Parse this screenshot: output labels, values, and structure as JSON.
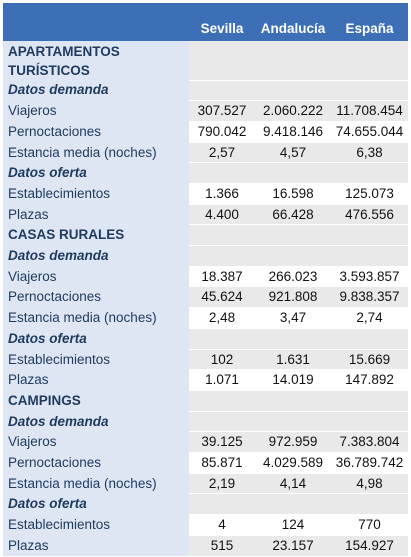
{
  "header": {
    "columns": [
      "",
      "Sevilla",
      "Andalucía",
      "España"
    ]
  },
  "rows": [
    {
      "type": "section",
      "label": "APARTAMENTOS TURÍSTICOS",
      "values": [
        "",
        "",
        ""
      ]
    },
    {
      "type": "sub",
      "label": "Datos demanda",
      "values": [
        "",
        "",
        ""
      ]
    },
    {
      "type": "data",
      "label": "Viajeros",
      "values": [
        "307.527",
        "2.060.222",
        "11.708.454"
      ]
    },
    {
      "type": "data",
      "label": "Pernoctaciones",
      "values": [
        "790.042",
        "9.418.146",
        "74.655.044"
      ]
    },
    {
      "type": "data",
      "label": "Estancia media (noches)",
      "values": [
        "2,57",
        "4,57",
        "6,38"
      ]
    },
    {
      "type": "sub",
      "label": "Datos oferta",
      "values": [
        "",
        "",
        ""
      ]
    },
    {
      "type": "data",
      "label": "Establecimientos",
      "values": [
        "1.366",
        "16.598",
        "125.073"
      ]
    },
    {
      "type": "data",
      "label": "Plazas",
      "values": [
        "4.400",
        "66.428",
        "476.556"
      ]
    },
    {
      "type": "section",
      "label": "CASAS RURALES",
      "values": [
        "",
        "",
        ""
      ]
    },
    {
      "type": "sub",
      "label": "Datos demanda",
      "values": [
        "",
        "",
        ""
      ]
    },
    {
      "type": "data",
      "label": "Viajeros",
      "values": [
        "18.387",
        "266.023",
        "3.593.857"
      ]
    },
    {
      "type": "data",
      "label": "Pernoctaciones",
      "values": [
        "45.624",
        "921.808",
        "9.838.357"
      ]
    },
    {
      "type": "data",
      "label": "Estancia media (noches)",
      "values": [
        "2,48",
        "3,47",
        "2,74"
      ]
    },
    {
      "type": "sub",
      "label": "Datos oferta",
      "values": [
        "",
        "",
        ""
      ]
    },
    {
      "type": "data",
      "label": "Establecimientos",
      "values": [
        "102",
        "1.631",
        "15.669"
      ]
    },
    {
      "type": "data",
      "label": "Plazas",
      "values": [
        "1.071",
        "14.019",
        "147.892"
      ]
    },
    {
      "type": "section",
      "label": "CAMPINGS",
      "values": [
        "",
        "",
        ""
      ]
    },
    {
      "type": "sub",
      "label": "Datos demanda",
      "values": [
        "",
        "",
        ""
      ]
    },
    {
      "type": "data",
      "label": "Viajeros",
      "values": [
        "39.125",
        "972.959",
        "7.383.804"
      ]
    },
    {
      "type": "data",
      "label": "Pernoctaciones",
      "values": [
        "85.871",
        "4.029.589",
        "36.789.742"
      ]
    },
    {
      "type": "data",
      "label": "Estancia media (noches)",
      "values": [
        "2,19",
        "4,14",
        "4,98"
      ]
    },
    {
      "type": "sub",
      "label": "Datos oferta",
      "values": [
        "",
        "",
        ""
      ]
    },
    {
      "type": "data",
      "label": "Establecimientos",
      "values": [
        "4",
        "124",
        "770"
      ]
    },
    {
      "type": "data",
      "label": "Plazas",
      "values": [
        "515",
        "23.157",
        "154.927"
      ]
    }
  ],
  "colors": {
    "header_bg": "#3d6fb7",
    "label_bg": "#dde6f2",
    "alt_row_bg": "#e9e9e9"
  }
}
